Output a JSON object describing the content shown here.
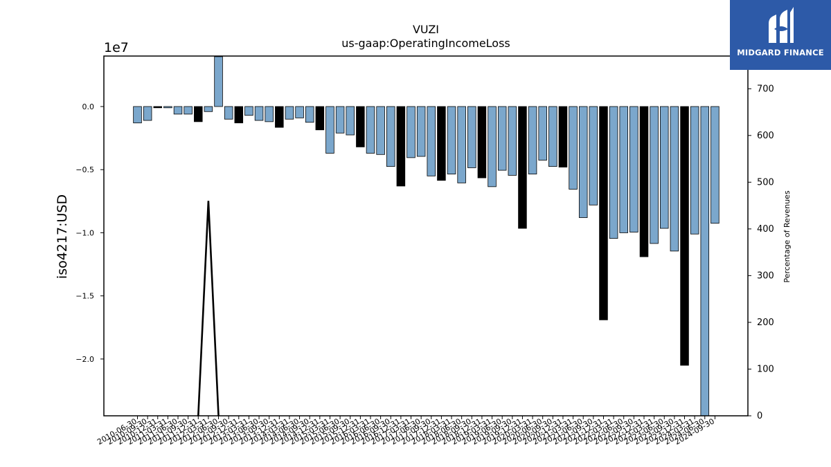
{
  "brand": {
    "name": "MIDGARD FINANCE",
    "bg": "#2d5aa8"
  },
  "chart_data": {
    "type": "bar",
    "title": "VUZI",
    "subtitle": "us-gaap:OperatingIncomeLoss",
    "ylabel": "iso4217:USD",
    "y2label": "Percentage of Revenues",
    "offset_label": "1e7",
    "ylim": [
      -24500000,
      4000000
    ],
    "y2lim": [
      0,
      770
    ],
    "yticks": [
      0,
      -5000000,
      -10000000,
      -15000000,
      -20000000
    ],
    "ytick_labels": [
      "0.0",
      "−0.5",
      "−1.0",
      "−1.5",
      "−2.0"
    ],
    "y2ticks": [
      0,
      100,
      200,
      300,
      400,
      500,
      600,
      700
    ],
    "grid": false,
    "colors": {
      "quarterly": "#7ba7cc",
      "annual": "#000000",
      "line": "#000000"
    },
    "categories": [
      "2010-06-30",
      "2010-09-30",
      "2010-12-31",
      "2011-03-31",
      "2011-06-30",
      "2011-09-30",
      "2011-12-31",
      "2012-03-31",
      "2012-06-30",
      "2012-09-30",
      "2012-12-31",
      "2013-03-31",
      "2013-06-30",
      "2013-09-30",
      "2013-12-31",
      "2014-03-31",
      "2014-06-30",
      "2014-09-30",
      "2014-12-31",
      "2015-03-31",
      "2015-06-30",
      "2015-09-30",
      "2015-12-31",
      "2016-03-31",
      "2016-06-30",
      "2016-09-30",
      "2016-12-31",
      "2017-03-31",
      "2017-06-30",
      "2017-09-30",
      "2017-12-31",
      "2018-03-31",
      "2018-06-30",
      "2018-09-30",
      "2018-12-31",
      "2019-03-31",
      "2019-06-30",
      "2019-09-30",
      "2019-12-31",
      "2020-03-31",
      "2020-06-30",
      "2020-09-30",
      "2020-12-31",
      "2021-03-31",
      "2021-06-30",
      "2021-09-30",
      "2021-12-31",
      "2022-03-31",
      "2022-06-30",
      "2022-09-30",
      "2022-12-31",
      "2023-03-31",
      "2023-06-30",
      "2023-09-30",
      "2023-12-31",
      "2024-03-31",
      "2024-06-30",
      "2024-09-30"
    ],
    "x_tick_labels": [
      "2010-06-30",
      "2010-09-30",
      "2010-12-31",
      "2011-03-31",
      "2011-06-30",
      "2011-09-30",
      "2011-12-31",
      "2012-03-31",
      "2012-06-30",
      "2012-09-30",
      "2012-12-31",
      "2013-03-31",
      "2013-06-30",
      "2013-09-30",
      "2013-12-31",
      "2014-03-31",
      "2014-06-30",
      "2014-09-30",
      "2014-12-31",
      "2015-03-31",
      "2015-06-30",
      "2015-09-30",
      "2015-12-31",
      "2016-03-31",
      "2016-06-30",
      "2016-09-30",
      "2016-12-31",
      "2017-03-31",
      "2017-06-30",
      "2017-09-30",
      "2017-12-31",
      "2018-03-31",
      "2018-06-30",
      "2018-09-30",
      "2018-12-31",
      "2019-03-31",
      "2019-06-30",
      "2019-09-30",
      "2019-12-31",
      "2020-03-31",
      "2020-06-30",
      "2020-09-30",
      "2020-12-31",
      "2021-03-31",
      "2021-06-30",
      "2021-09-30",
      "2021-12-31",
      "2022-03-31",
      "2022-06-30",
      "2022-09-30",
      "2022-12-31",
      "2023-03-31",
      "2023-06-30",
      "2023-09-30",
      "2023-12-31",
      "2024-03-31",
      "2024-06-30",
      "2024-09-30"
    ],
    "values": [
      -1300000,
      -1100000,
      -100000,
      -100000,
      -600000,
      -600000,
      -1200000,
      -400000,
      3950000,
      -1000000,
      -1300000,
      -700000,
      -1100000,
      -1200000,
      -1650000,
      -1000000,
      -900000,
      -1250000,
      -1850000,
      -3700000,
      -2100000,
      -2250000,
      -3200000,
      -3700000,
      -3800000,
      -4750000,
      -6300000,
      -4050000,
      -3950000,
      -5500000,
      -5850000,
      -5350000,
      -6050000,
      -4850000,
      -5650000,
      -6350000,
      -5050000,
      -5450000,
      -9650000,
      -5350000,
      -4250000,
      -4750000,
      -4800000,
      -6550000,
      -8800000,
      -7800000,
      -16900000,
      -10450000,
      -10000000,
      -9950000,
      -11900000,
      -10850000,
      -9650000,
      -11450000,
      -20500000,
      -10100000,
      -24500000,
      -9250000
    ],
    "annual": [
      false,
      false,
      true,
      false,
      false,
      false,
      true,
      false,
      false,
      false,
      true,
      false,
      false,
      false,
      true,
      false,
      false,
      false,
      true,
      false,
      false,
      false,
      true,
      false,
      false,
      false,
      true,
      false,
      false,
      false,
      true,
      false,
      false,
      false,
      true,
      false,
      false,
      false,
      true,
      false,
      false,
      false,
      true,
      false,
      false,
      false,
      true,
      false,
      false,
      false,
      true,
      false,
      false,
      false,
      true,
      false,
      false,
      false
    ],
    "line": {
      "axis": "y2",
      "x": [
        "2011-12-31",
        "2012-03-31",
        "2012-06-30"
      ],
      "y": [
        0,
        460,
        0
      ]
    }
  }
}
